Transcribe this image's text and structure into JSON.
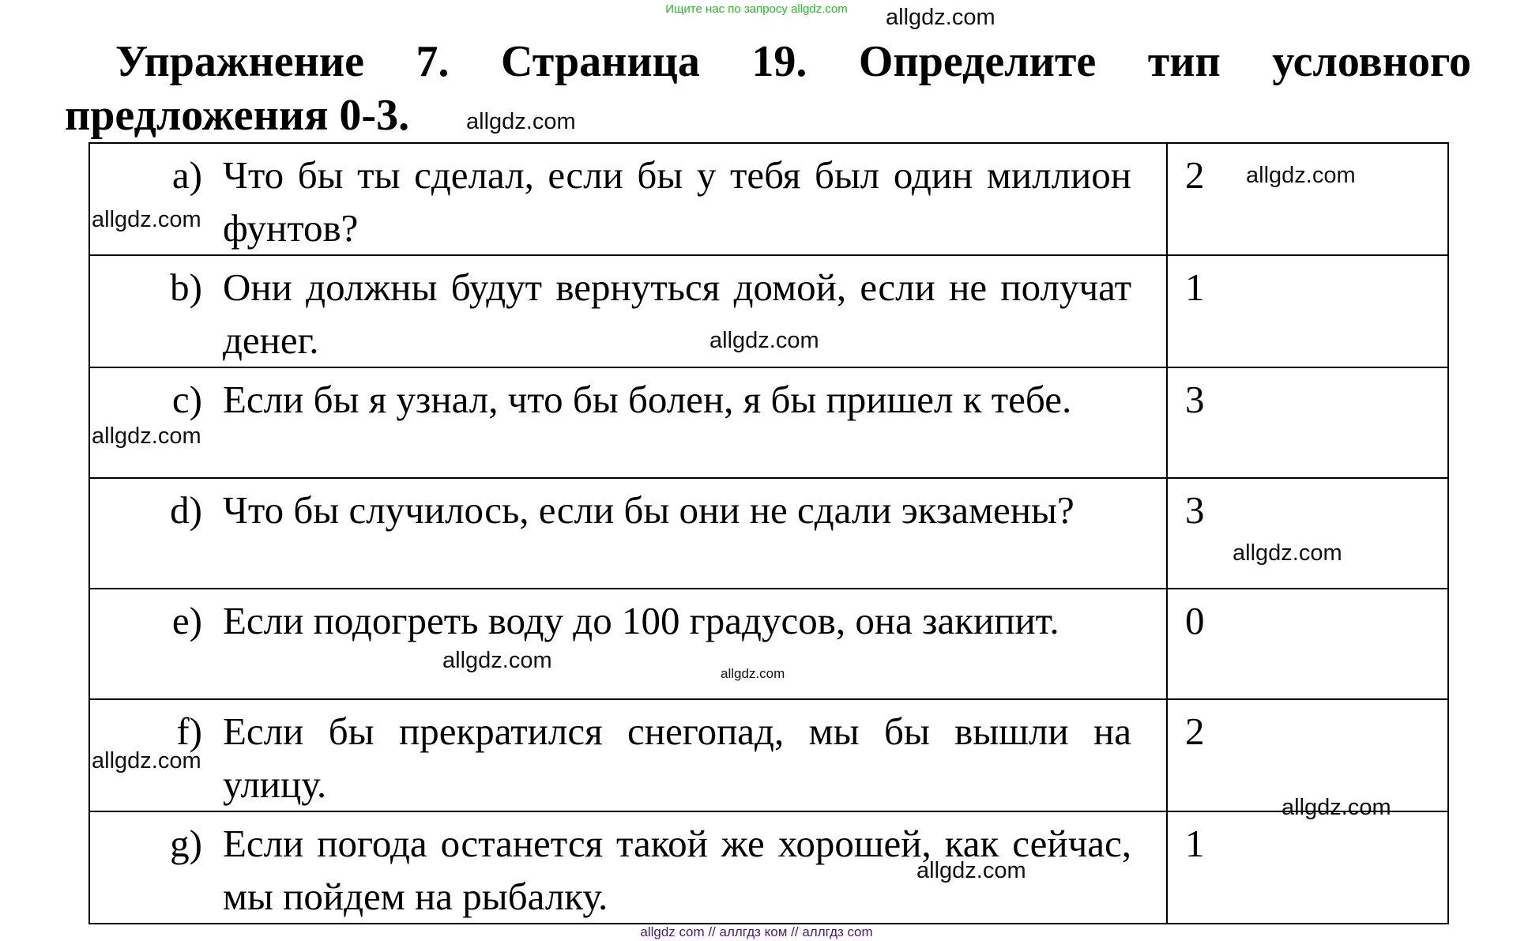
{
  "header_note": "Ищите нас по запросу allgdz.com",
  "title": {
    "line1": "Упражнение 7. Страница 19. Определите тип условного",
    "line2": "предложения 0-3."
  },
  "rows": [
    {
      "label": "a)",
      "text": "Что бы ты сделал, если бы у тебя был один миллион фунтов?",
      "answer": "2"
    },
    {
      "label": "b)",
      "text": "Они должны будут вернуться домой, если не получат денег.",
      "answer": "1"
    },
    {
      "label": "c)",
      "text": "Если бы я узнал, что бы болен, я бы пришел к тебе.",
      "answer": "3"
    },
    {
      "label": "d)",
      "text": "Что бы случилось, если бы они не сдали экзамены?",
      "answer": "3"
    },
    {
      "label": "e)",
      "text": "Если подогреть воду до 100 градусов, она закипит.",
      "answer": "0"
    },
    {
      "label": "f)",
      "text": "Если бы прекратился снегопад, мы бы вышли на улицу.",
      "answer": "2"
    },
    {
      "label": "g)",
      "text": "Если погода останется такой же хорошей, как сейчас, мы пойдем на рыбалку.",
      "answer": "1"
    }
  ],
  "watermark": "allgdz.com",
  "footer": "allgdz com  //  аллгдз ком  //  аллгдз com"
}
